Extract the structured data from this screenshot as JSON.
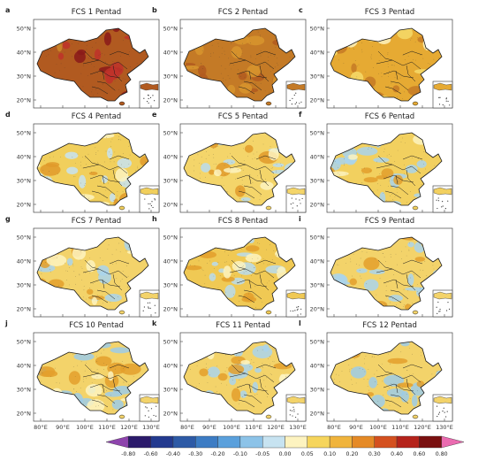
{
  "panels": [
    {
      "letter": "a",
      "title": "FCS 1 Pentad",
      "base": "#b15a20",
      "spots": [
        [
          "#8b1a1a",
          0.35
        ],
        [
          "#c0322a",
          0.3
        ],
        [
          "#cf8a2c",
          0.2
        ]
      ]
    },
    {
      "letter": "b",
      "title": "FCS 2 Pentad",
      "base": "#c47a26",
      "spots": [
        [
          "#b15a20",
          0.3
        ],
        [
          "#d8952e",
          0.3
        ]
      ]
    },
    {
      "letter": "c",
      "title": "FCS 3 Pentad",
      "base": "#e6aa33",
      "spots": [
        [
          "#c47a26",
          0.3
        ],
        [
          "#f4da6a",
          0.25
        ],
        [
          "#fdf3c0",
          0.1
        ]
      ]
    },
    {
      "letter": "d",
      "title": "FCS 4 Pentad",
      "base": "#f1cf5c",
      "spots": [
        [
          "#c7e3f1",
          0.35
        ],
        [
          "#e09a2a",
          0.25
        ],
        [
          "#fdf3c0",
          0.2
        ]
      ]
    },
    {
      "letter": "e",
      "title": "FCS 5 Pentad",
      "base": "#f4d56a",
      "spots": [
        [
          "#b9dcee",
          0.4
        ],
        [
          "#e09a2a",
          0.25
        ],
        [
          "#fdf3c0",
          0.2
        ]
      ]
    },
    {
      "letter": "f",
      "title": "FCS 6 Pentad",
      "base": "#f2d05f",
      "spots": [
        [
          "#a9d3ec",
          0.45
        ],
        [
          "#e39f2b",
          0.25
        ],
        [
          "#fdf3c0",
          0.15
        ]
      ]
    },
    {
      "letter": "g",
      "title": "FCS 7 Pentad",
      "base": "#f3d36a",
      "spots": [
        [
          "#a9d3ec",
          0.45
        ],
        [
          "#e39f2b",
          0.3
        ],
        [
          "#fdf3c0",
          0.15
        ]
      ]
    },
    {
      "letter": "h",
      "title": "FCS 8 Pentad",
      "base": "#f0c954",
      "spots": [
        [
          "#b9dcee",
          0.4
        ],
        [
          "#e39f2b",
          0.35
        ],
        [
          "#fdf3c0",
          0.15
        ]
      ]
    },
    {
      "letter": "i",
      "title": "FCS 9 Pentad",
      "base": "#f3d36a",
      "spots": [
        [
          "#a9d3ec",
          0.5
        ],
        [
          "#e39f2b",
          0.3
        ]
      ]
    },
    {
      "letter": "j",
      "title": "FCS 10 Pentad",
      "base": "#f3d36a",
      "spots": [
        [
          "#9ccbe8",
          0.5
        ],
        [
          "#e39f2b",
          0.3
        ],
        [
          "#fdf3c0",
          0.15
        ]
      ]
    },
    {
      "letter": "k",
      "title": "FCS 11 Pentad",
      "base": "#f3d36a",
      "spots": [
        [
          "#a9d3ec",
          0.45
        ],
        [
          "#e39f2b",
          0.3
        ],
        [
          "#fdf3c0",
          0.15
        ]
      ]
    },
    {
      "letter": "l",
      "title": "FCS 12 Pentad",
      "base": "#f3d36a",
      "spots": [
        [
          "#9ccbe8",
          0.5
        ],
        [
          "#e39f2b",
          0.3
        ]
      ]
    }
  ],
  "lat_ticks": [
    "50°N",
    "40°N",
    "30°N",
    "20°N"
  ],
  "lon_ticks": [
    "80°E",
    "90°E",
    "100°E",
    "110°E",
    "120°E",
    "130°E"
  ],
  "colorbar": {
    "labels": [
      "-0.80",
      "-0.60",
      "-0.40",
      "-0.30",
      "-0.20",
      "-0.10",
      "-0.05",
      "0.00",
      "0.05",
      "0.10",
      "0.20",
      "0.30",
      "0.40",
      "0.60",
      "0.80"
    ],
    "colors": [
      "#8e44ad",
      "#2b1a6b",
      "#233a8f",
      "#2d5aa6",
      "#3c7cc4",
      "#5aa0dc",
      "#8cc3e8",
      "#c7e3f1",
      "#fdf3c0",
      "#f6d55c",
      "#f0b43c",
      "#e58a26",
      "#d4501f",
      "#b5231b",
      "#7a1010",
      "#ea6bb0"
    ]
  }
}
